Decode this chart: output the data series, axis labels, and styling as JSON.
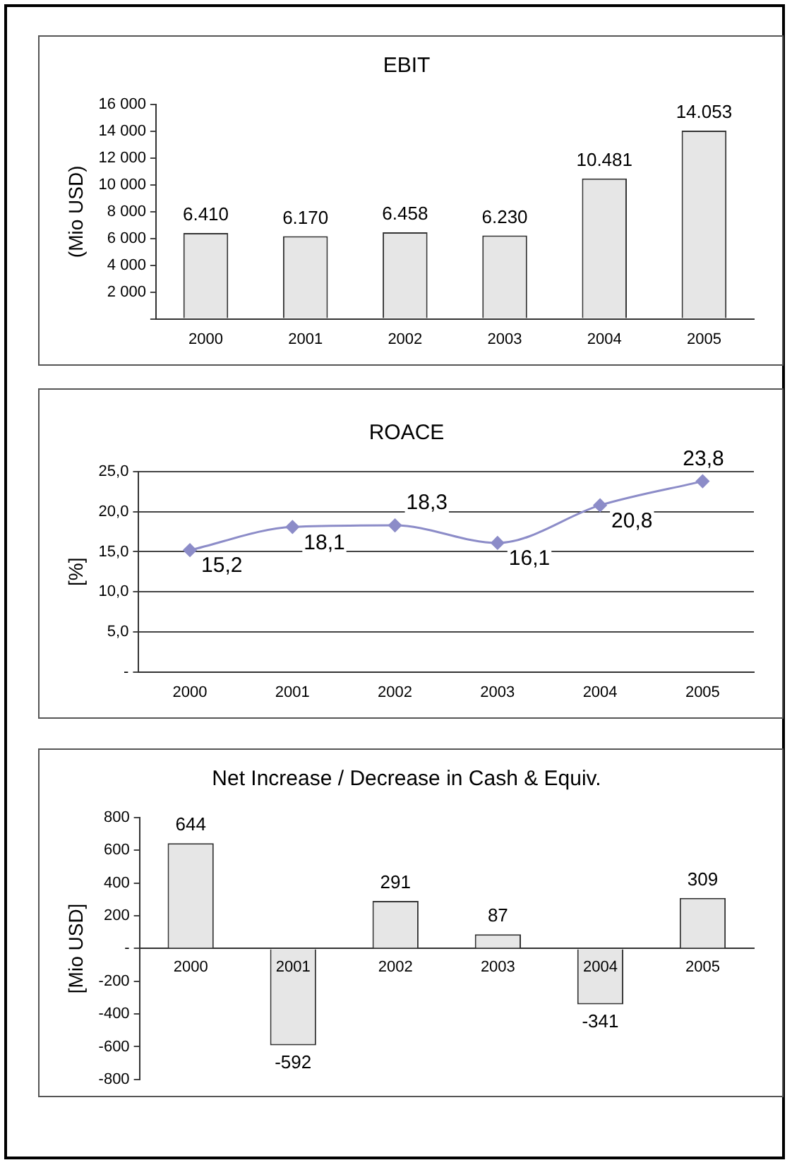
{
  "chart_data": [
    {
      "type": "bar",
      "title": "EBIT",
      "ylabel": "(Mio USD)",
      "categories": [
        "2000",
        "2001",
        "2002",
        "2003",
        "2004",
        "2005"
      ],
      "values": [
        6410,
        6170,
        6458,
        6230,
        10481,
        14053
      ],
      "value_labels": [
        "6.410",
        "6.170",
        "6.458",
        "6.230",
        "10.481",
        "14.053"
      ],
      "color": "#e6e6e6",
      "ylim": [
        0,
        16000
      ],
      "yticks": [
        {
          "value": 0,
          "label": null
        },
        {
          "value": 2000,
          "label": "2 000"
        },
        {
          "value": 4000,
          "label": "4 000"
        },
        {
          "value": 6000,
          "label": "6 000"
        },
        {
          "value": 8000,
          "label": "8 000"
        },
        {
          "value": 10000,
          "label": "10 000"
        },
        {
          "value": 12000,
          "label": "12 000"
        },
        {
          "value": 14000,
          "label": "14 000"
        },
        {
          "value": 16000,
          "label": "16 000"
        }
      ]
    },
    {
      "type": "line",
      "title": "ROACE",
      "ylabel": "[%]",
      "categories": [
        "2000",
        "2001",
        "2002",
        "2003",
        "2004",
        "2005"
      ],
      "values": [
        15.2,
        18.1,
        18.3,
        16.1,
        20.8,
        23.8
      ],
      "value_labels": [
        "15,2",
        "18,1",
        "18,3",
        "16,1",
        "20,8",
        "23,8"
      ],
      "color": "#8c8cc8",
      "marker": "diamond",
      "line_style": "solid",
      "grid": "y",
      "ylim": [
        0,
        25
      ],
      "yticks": [
        {
          "value": 0,
          "label": "-"
        },
        {
          "value": 5,
          "label": "5,0"
        },
        {
          "value": 10,
          "label": "10,0"
        },
        {
          "value": 15,
          "label": "15,0"
        },
        {
          "value": 20,
          "label": "20,0"
        },
        {
          "value": 25,
          "label": "25,0"
        }
      ]
    },
    {
      "type": "bar",
      "title": "Net Increase / Decrease in Cash & Equiv.",
      "ylabel": "[Mio USD]",
      "categories": [
        "2000",
        "2001",
        "2002",
        "2003",
        "2004",
        "2005"
      ],
      "values": [
        644,
        -592,
        291,
        87,
        -341,
        309
      ],
      "data_labels": true,
      "color": "#e6e6e6",
      "ylim": [
        -800,
        800
      ],
      "yticks": [
        -800,
        -600,
        -400,
        -200,
        {
          "value": 0,
          "label": "-"
        },
        200,
        400,
        600,
        800
      ]
    }
  ]
}
